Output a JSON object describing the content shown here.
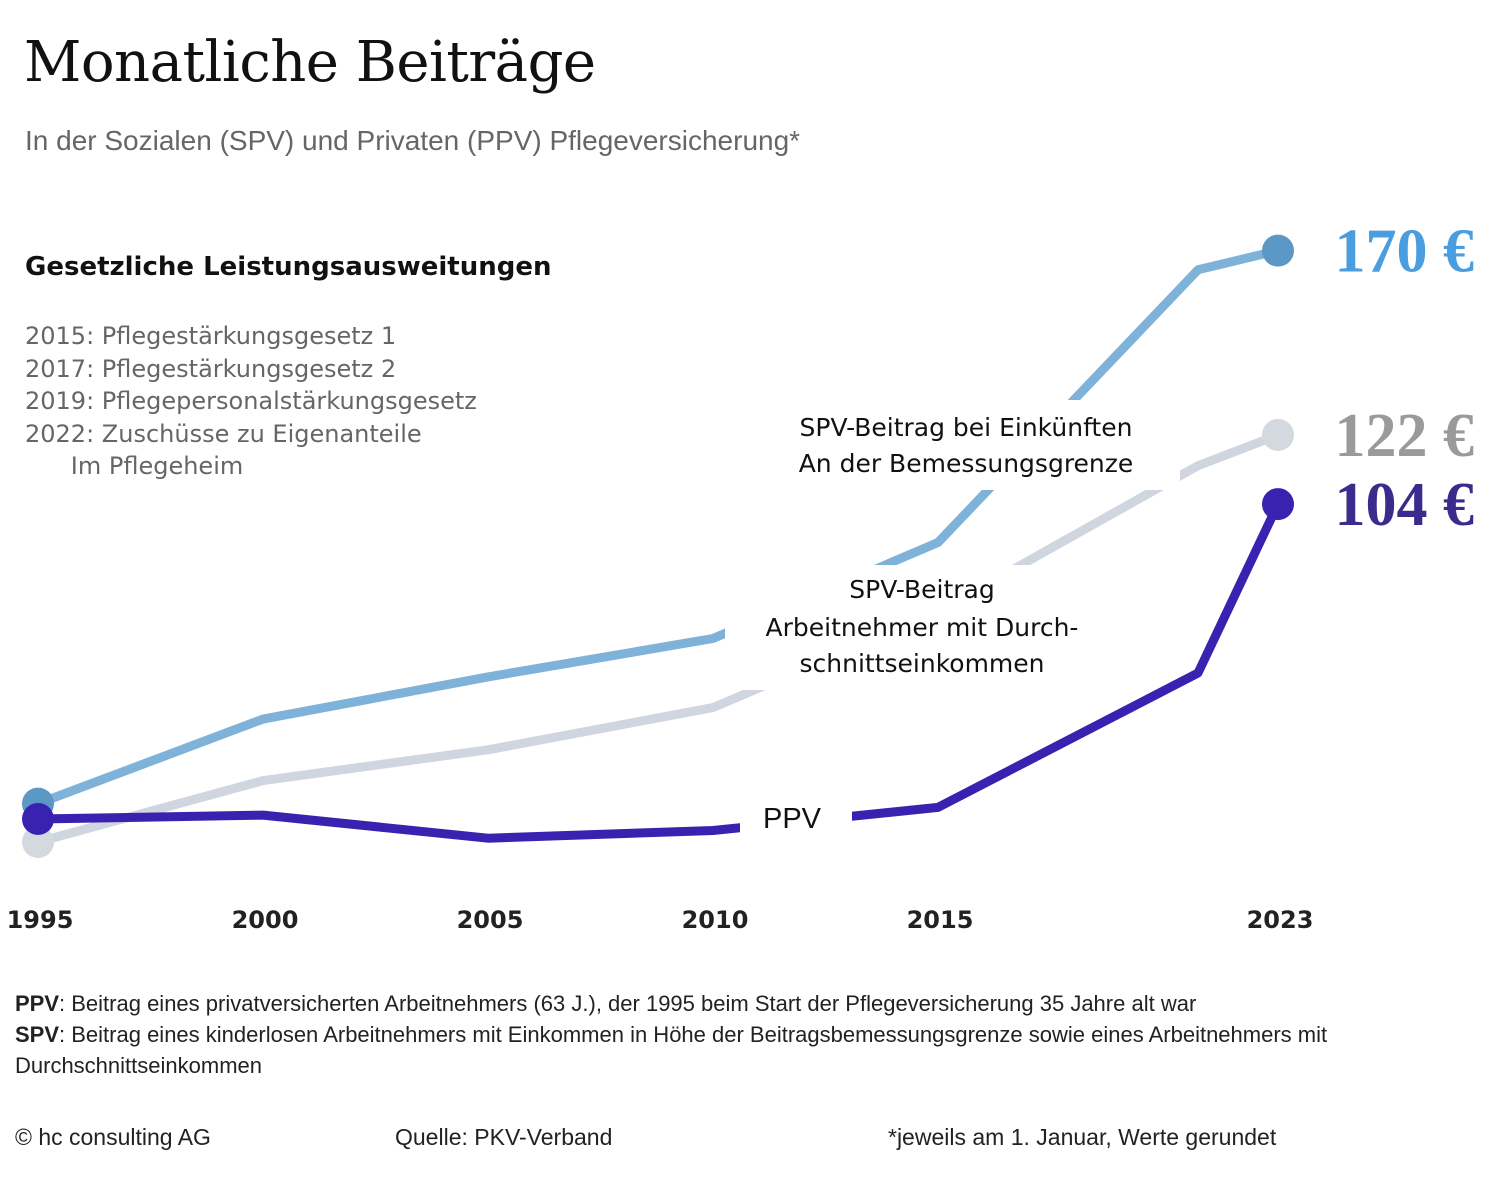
{
  "title": "Monatliche Beiträge",
  "subtitle": "In der Sozialen (SPV) und Privaten (PPV) Pflegeversicherung*",
  "legislation": {
    "heading": "Gesetzliche Leistungsausweitungen",
    "items": [
      "2015: Pflegestärkungsgesetz 1",
      "2017: Pflegestärkungsgesetz 2",
      "2019: Pflegepersonalstärkungsgesetz",
      "2022: Zuschüsse zu Eigenanteile",
      "      Im Pflegeheim"
    ]
  },
  "chart_data": {
    "type": "line",
    "x_ticks": [
      "1995",
      "2000",
      "2005",
      "2010",
      "2015",
      "2023"
    ],
    "ylim": [
      0,
      200
    ],
    "series": [
      {
        "name": "SPV-Beitrag bei Einkünften An der Bemessungsgrenze",
        "label_lines": [
          "SPV-Beitrag bei Einkünften",
          "An der Bemessungsgrenze"
        ],
        "color": "#7fb2d9",
        "dot_color": "#5b98c5",
        "value_color": "#4a9ee0",
        "end_label": "170 €",
        "points": [
          [
            1995,
            26
          ],
          [
            2000,
            48
          ],
          [
            2005,
            59
          ],
          [
            2010,
            69
          ],
          [
            2015,
            94
          ],
          [
            2022,
            165
          ],
          [
            2023,
            170
          ]
        ]
      },
      {
        "name": "SPV-Beitrag Arbeitnehmer mit Durchschnittseinkommen",
        "label_lines": [
          "SPV-Beitrag",
          "Arbeitnehmer mit Durch-",
          "schnittseinkommen"
        ],
        "color": "#cfd6e0",
        "dot_color": "#d4d9e0",
        "value_color": "#9a9a9a",
        "end_label": "122 €",
        "points": [
          [
            1995,
            16
          ],
          [
            2000,
            32
          ],
          [
            2005,
            40
          ],
          [
            2010,
            51
          ],
          [
            2015,
            76
          ],
          [
            2022,
            114
          ],
          [
            2023,
            122
          ]
        ]
      },
      {
        "name": "PPV",
        "label_lines": [
          "PPV"
        ],
        "color": "#3a22b0",
        "dot_color": "#3a22b0",
        "value_color": "#3b2b8c",
        "end_label": "104 €",
        "points": [
          [
            1995,
            22
          ],
          [
            2000,
            23
          ],
          [
            2005,
            17
          ],
          [
            2010,
            19
          ],
          [
            2015,
            25
          ],
          [
            2022,
            60
          ],
          [
            2023,
            104
          ]
        ]
      }
    ]
  },
  "footnotes": {
    "ppv_key": "PPV",
    "ppv_text": ": Beitrag eines privatversicherten Arbeitnehmers (63 J.), der 1995 beim Start der Pflegeversicherung 35 Jahre alt war",
    "spv_key": "SPV",
    "spv_text": ": Beitrag eines kinderlosen Arbeitnehmers mit Einkommen in Höhe der Beitragsbemessungsgrenze sowie eines Arbeitnehmers mit Durchschnittseinkommen"
  },
  "copyright": "© hc consulting AG",
  "source": "Quelle: PKV-Verband",
  "note": "*jeweils am 1. Januar, Werte gerundet"
}
